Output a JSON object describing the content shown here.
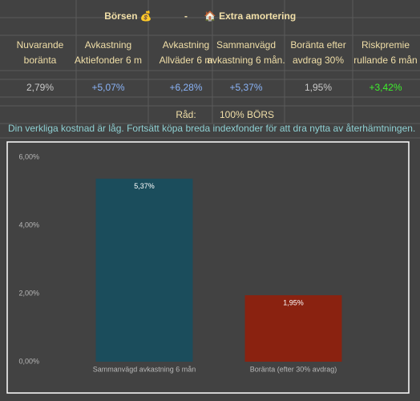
{
  "header": {
    "title": "Börsen 💰",
    "separator": "-",
    "subtitle": "🏠 Extra amortering"
  },
  "table": {
    "headers": [
      [
        "Nuvarande",
        "boränta"
      ],
      [
        "Avkastning",
        "Aktiefonder 6 m"
      ],
      [
        "Avkastning",
        "Allväder 6 m"
      ],
      [
        "Sammanvägd",
        "avkastning 6 mån."
      ],
      [
        "Boränta efter",
        "avdrag 30%"
      ],
      [
        "Riskpremie",
        "rullande 6 mån"
      ]
    ],
    "values": [
      "2,79%",
      "+5,07%",
      "+6,28%",
      "+5,37%",
      "1,95%",
      "+3,42%"
    ]
  },
  "advice": {
    "label": "Råd:",
    "value": "100% BÖRS"
  },
  "message": "Din verkliga kostnad är låg. Fortsätt köpa breda indexfonder för att dra nytta av återhämtningen.",
  "chart_data": {
    "type": "bar",
    "categories": [
      "Sammanvägd avkastning 6 mån",
      "Boränta (efter 30% avdrag)"
    ],
    "values": [
      5.37,
      1.95
    ],
    "value_labels": [
      "5,37%",
      "1,95%"
    ],
    "colors": [
      "#1b4d5c",
      "#8a2210"
    ],
    "ylim": [
      0,
      6
    ],
    "yticks": [
      {
        "value": 0,
        "label": "0,00%"
      },
      {
        "value": 2,
        "label": "2,00%"
      },
      {
        "value": 4,
        "label": "4,00%"
      },
      {
        "value": 6,
        "label": "6,00%"
      }
    ]
  }
}
